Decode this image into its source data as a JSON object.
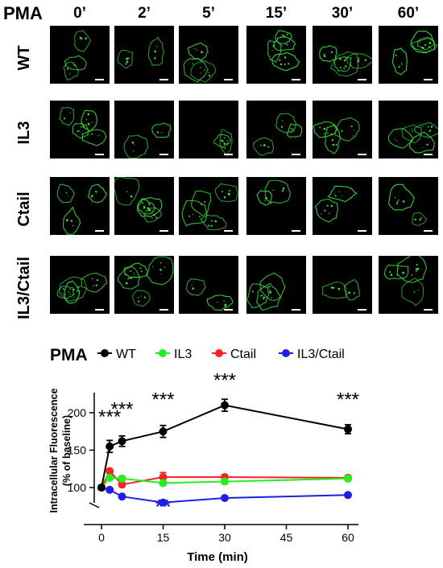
{
  "figure": {
    "stimulus_label": "PMA",
    "time_columns": [
      "0’",
      "2’",
      "5’",
      "15’",
      "30’",
      "60’"
    ],
    "rows": [
      "WT",
      "IL3",
      "Ctail",
      "IL3/Ctail"
    ]
  },
  "chart_data": {
    "type": "line",
    "title": "",
    "stimulus_label": "PMA",
    "xlabel": "Time (min)",
    "ylabel_line1": "Intracellular Fluorescence",
    "ylabel_line2": "(% of baseline)",
    "xlim": [
      -5,
      63
    ],
    "ylim": [
      75,
      230
    ],
    "xticks": [
      0,
      15,
      30,
      45,
      60
    ],
    "yticks": [
      100,
      150,
      200
    ],
    "grid": false,
    "legend_position": "top",
    "series": [
      {
        "name": "WT",
        "color": "#000000",
        "x": [
          0,
          2,
          5,
          15,
          30,
          60
        ],
        "y": [
          100,
          155,
          162,
          175,
          210,
          178
        ],
        "err": [
          3,
          8,
          7,
          8,
          8,
          6
        ]
      },
      {
        "name": "IL3",
        "color": "#22ee22",
        "x": [
          0,
          2,
          5,
          15,
          30,
          60
        ],
        "y": [
          100,
          113,
          112,
          106,
          108,
          112
        ],
        "err": [
          2,
          3,
          3,
          3,
          3,
          3
        ]
      },
      {
        "name": "Ctail",
        "color": "#ff2222",
        "x": [
          0,
          2,
          5,
          15,
          30,
          60
        ],
        "y": [
          100,
          122,
          104,
          114,
          114,
          113
        ],
        "err": [
          2,
          3,
          3,
          6,
          3,
          3
        ]
      },
      {
        "name": "IL3/Ctail",
        "color": "#1e1ee6",
        "x": [
          0,
          2,
          5,
          15,
          30,
          60
        ],
        "y": [
          100,
          97,
          88,
          80,
          86,
          90
        ],
        "err": [
          2,
          2,
          2,
          2,
          2,
          2
        ]
      }
    ],
    "annotations": [
      {
        "text": "***",
        "x": 2,
        "y": 186,
        "color": "#000000"
      },
      {
        "text": "***",
        "x": 5,
        "y": 196,
        "color": "#000000"
      },
      {
        "text": "***",
        "x": 15,
        "y": 209,
        "color": "#000000"
      },
      {
        "text": "***",
        "x": 30,
        "y": 235,
        "color": "#000000"
      },
      {
        "text": "***",
        "x": 60,
        "y": 209,
        "color": "#000000"
      },
      {
        "text": "**",
        "x": 15,
        "y": 66,
        "color": "#1e1ee6"
      }
    ]
  }
}
